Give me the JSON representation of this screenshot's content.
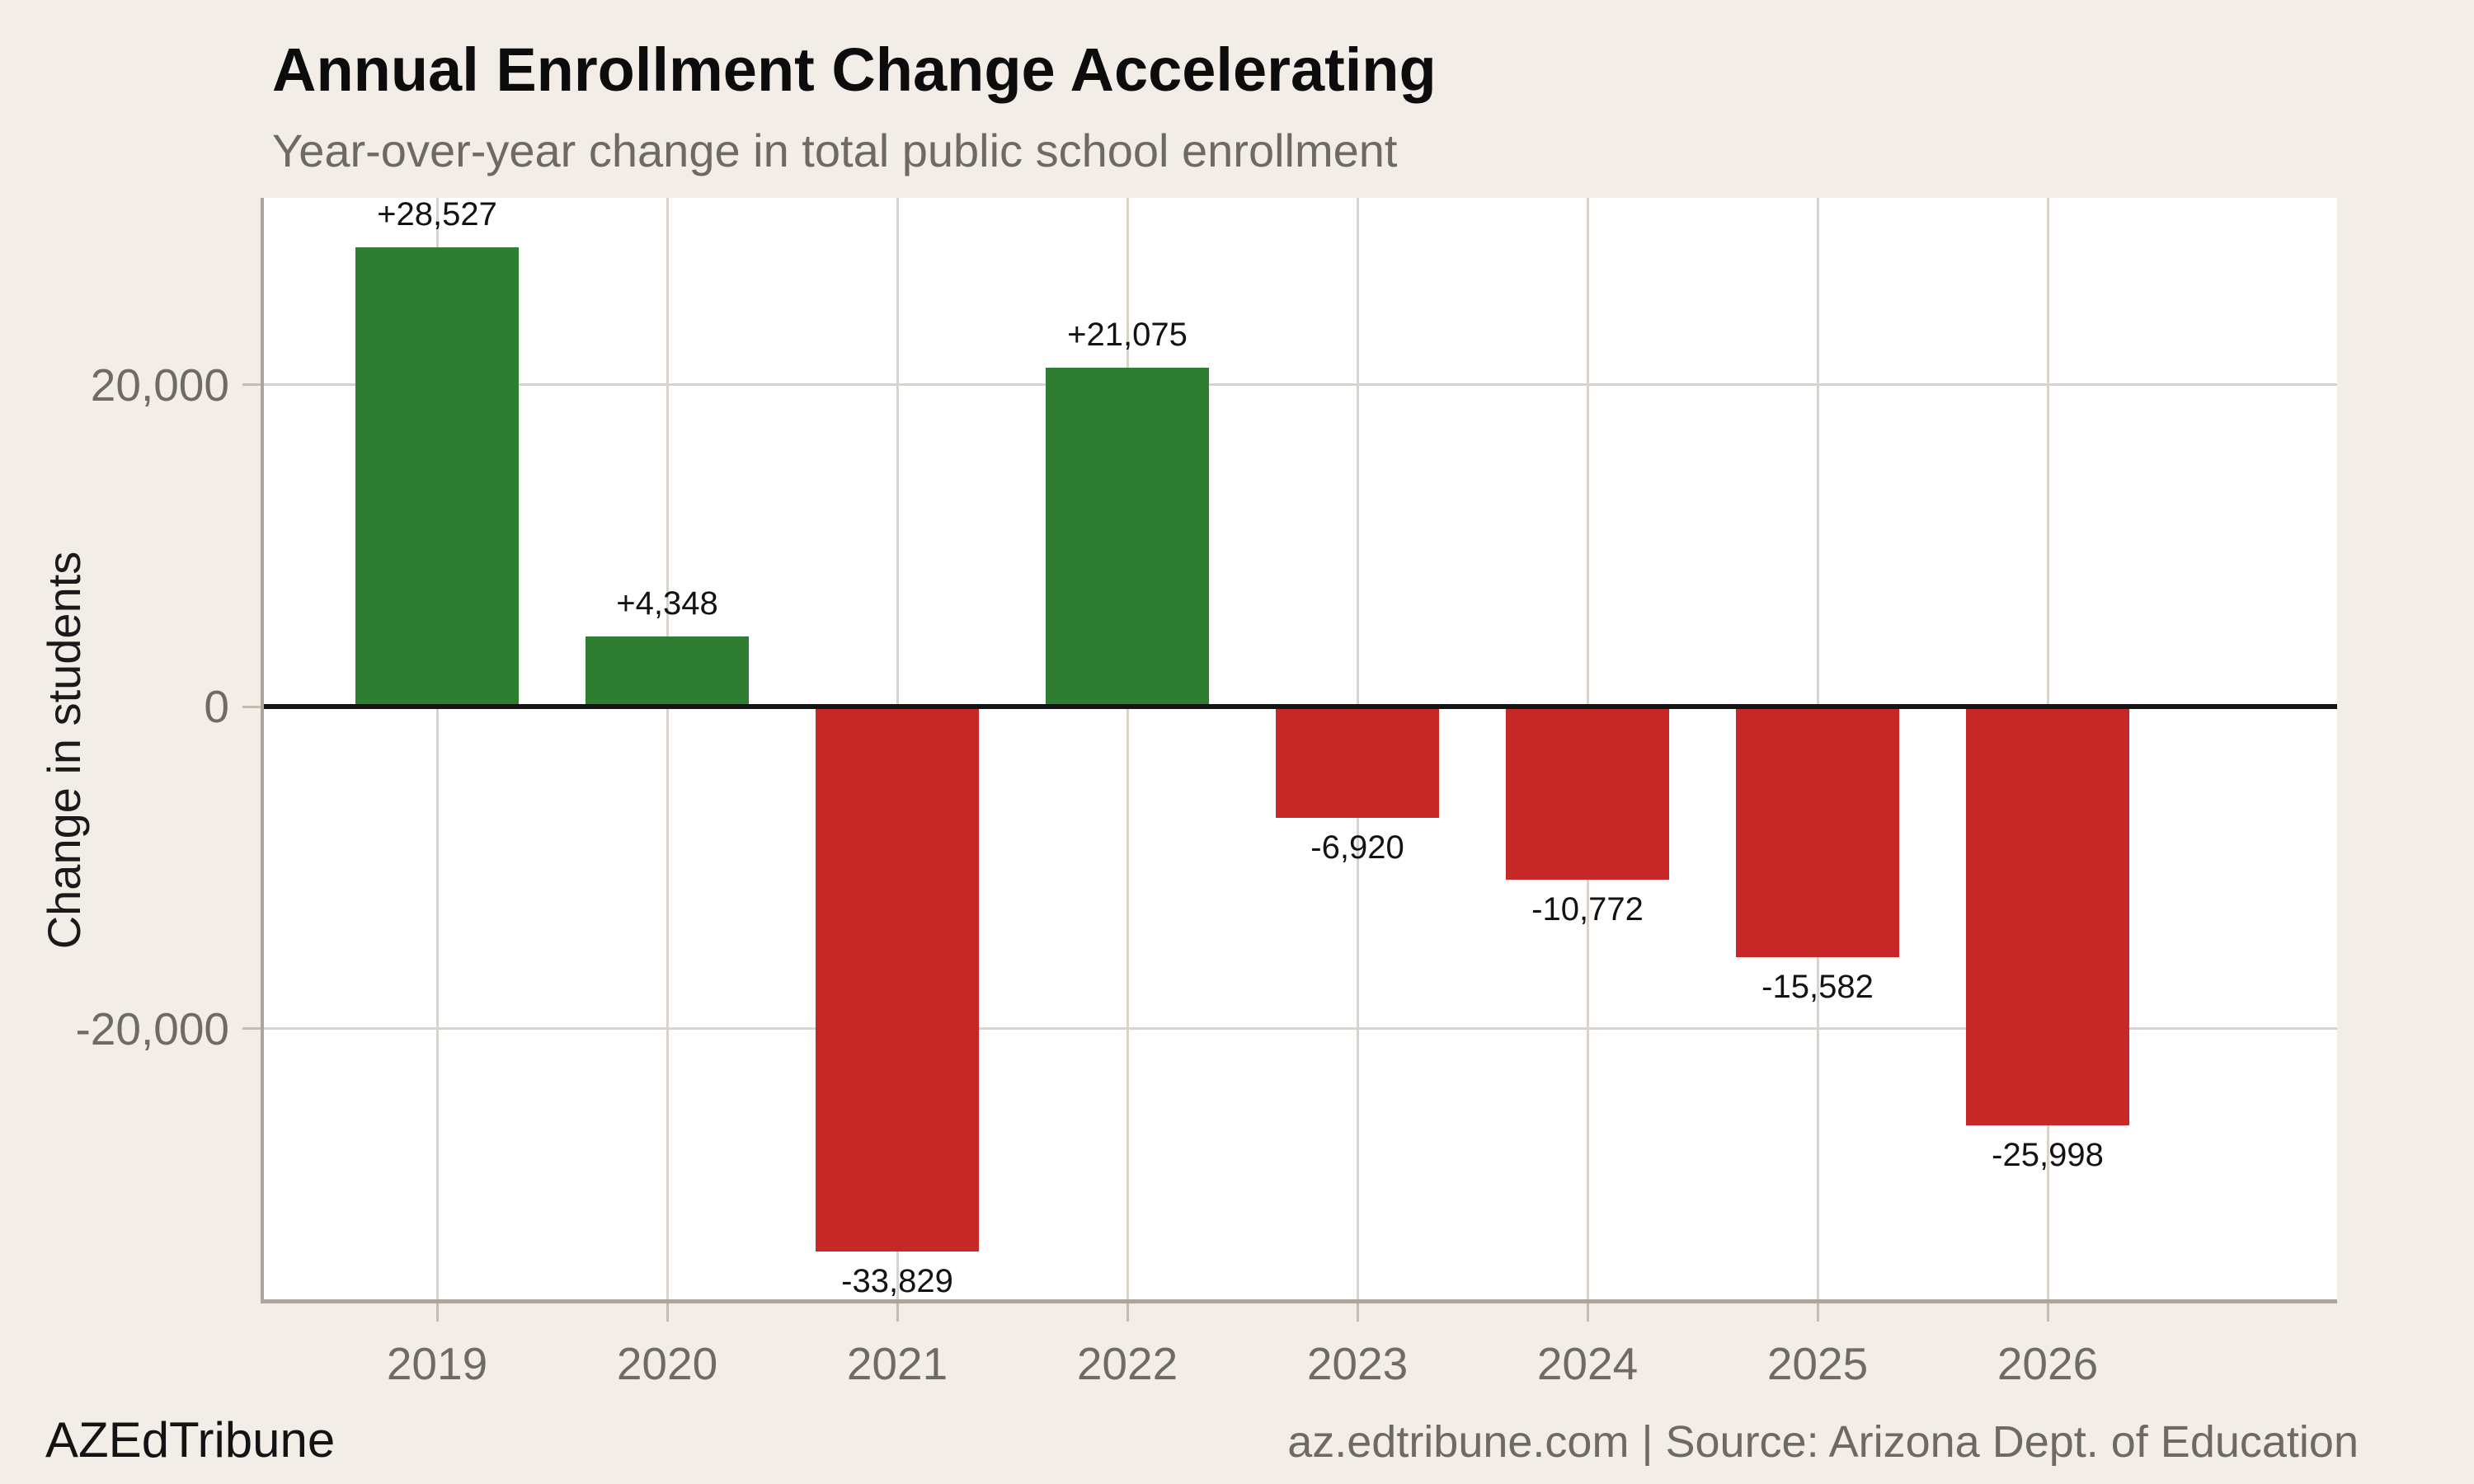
{
  "header": {
    "title": "Annual Enrollment Change Accelerating",
    "subtitle": "Year-over-year change in total public school enrollment"
  },
  "footer": {
    "brand": "AZEdTribune",
    "source": "az.edtribune.com | Source: Arizona Dept. of Education"
  },
  "colors": {
    "positive": "#2e7d32",
    "negative": "#c62828",
    "background": "#f2eee7",
    "plot_background": "#ffffff",
    "grid": "#d9d3c9",
    "axis_spine": "#aba59b",
    "tick_mark": "#c3bdb2",
    "zero_line": "#141414",
    "tick_label": "#6f6a63",
    "value_label": "#131313"
  },
  "chart_data": {
    "type": "bar",
    "title": "Annual Enrollment Change Accelerating",
    "subtitle": "Year-over-year change in total public school enrollment",
    "xlabel": "",
    "ylabel": "Change in students",
    "categories": [
      "2019",
      "2020",
      "2021",
      "2022",
      "2023",
      "2024",
      "2025",
      "2026"
    ],
    "values": [
      28527,
      4348,
      -33829,
      21075,
      -6920,
      -10772,
      -15582,
      -25998
    ],
    "value_labels": [
      "+28,527",
      "+4,348",
      "-33,829",
      "+21,075",
      "-6,920",
      "-10,772",
      "-15,582",
      "-25,998"
    ],
    "ylim": [
      -36800,
      31600
    ],
    "yticks": [
      {
        "value": 20000,
        "label": "20,000"
      },
      {
        "value": 0,
        "label": "0"
      },
      {
        "value": -20000,
        "label": "-20,000"
      }
    ],
    "grid": "on",
    "legend": "none",
    "bar_color_rule": "positive bars green, negative bars red"
  }
}
